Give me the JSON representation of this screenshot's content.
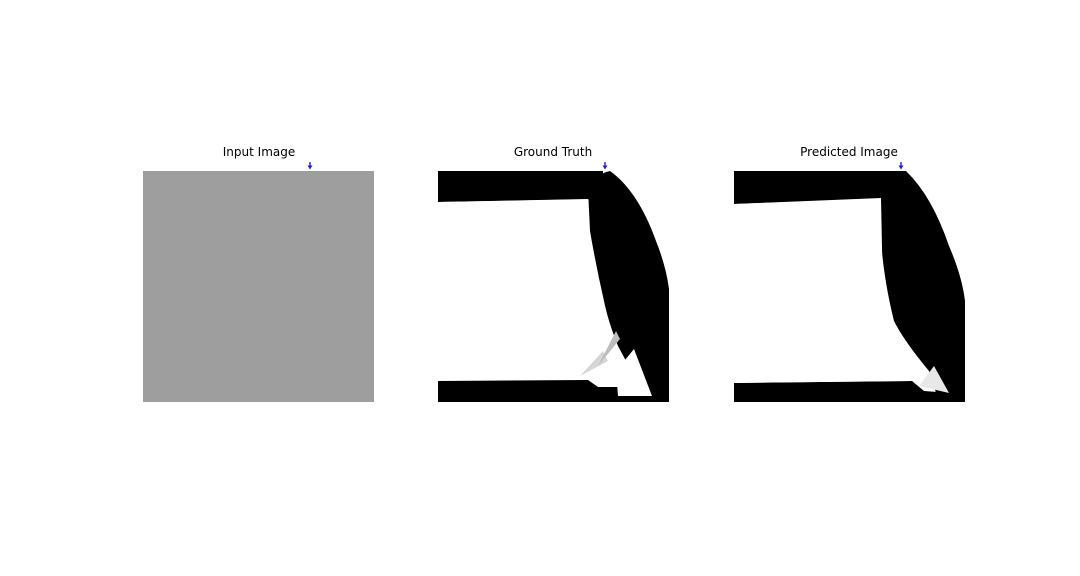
{
  "panels": [
    {
      "title": "Input Image"
    },
    {
      "title": "Ground Truth"
    },
    {
      "title": "Predicted Image"
    }
  ],
  "colors": {
    "input_fill": "#9e9e9e",
    "structure": "#000000",
    "background": "#ffffff",
    "load_marker": "#1f1fd6"
  }
}
